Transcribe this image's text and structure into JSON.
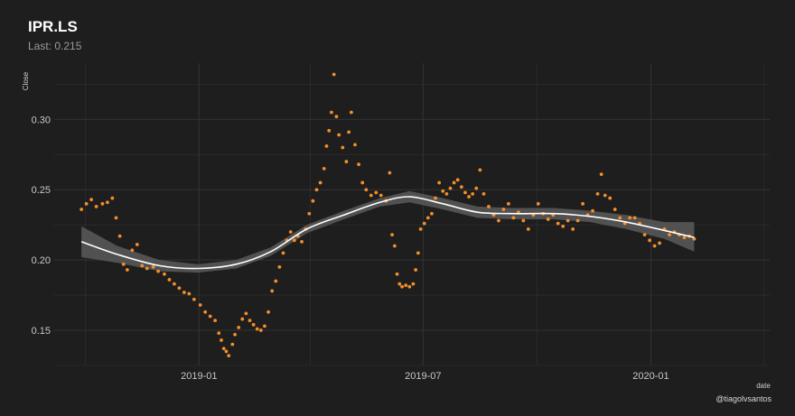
{
  "header": {
    "title": "IPR.LS",
    "subtitle": "Last: 0.215",
    "caption": "@tiagolvsantos"
  },
  "colors": {
    "background": "#1e1e1e",
    "grid": "#333333",
    "points": "#f28e2b",
    "trend_line": "#ffffff",
    "band": "#5a5a5a"
  },
  "chart_data": {
    "type": "scatter",
    "title": "IPR.LS",
    "subtitle": "Last: 0.215",
    "xlabel": "date",
    "ylabel": "Close",
    "x_ticks": [
      "2019-01",
      "2019-07",
      "2020-01"
    ],
    "y_ticks": [
      "0.15",
      "0.20",
      "0.25",
      "0.30"
    ],
    "xlim": [
      "2018-09-06",
      "2020-04-06"
    ],
    "ylim": [
      0.125,
      0.34
    ],
    "grid": true,
    "legend": "none",
    "series": [
      {
        "kind": "points",
        "values": [
          [
            "2018-09-28",
            0.236
          ],
          [
            "2018-10-02",
            0.24
          ],
          [
            "2018-10-06",
            0.243
          ],
          [
            "2018-10-10",
            0.238
          ],
          [
            "2018-10-15",
            0.24
          ],
          [
            "2018-10-19",
            0.241
          ],
          [
            "2018-10-23",
            0.244
          ],
          [
            "2018-10-26",
            0.23
          ],
          [
            "2018-10-29",
            0.217
          ],
          [
            "2018-11-01",
            0.197
          ],
          [
            "2018-11-04",
            0.193
          ],
          [
            "2018-11-08",
            0.207
          ],
          [
            "2018-11-12",
            0.211
          ],
          [
            "2018-11-16",
            0.196
          ],
          [
            "2018-11-20",
            0.194
          ],
          [
            "2018-11-25",
            0.195
          ],
          [
            "2018-11-29",
            0.192
          ],
          [
            "2018-12-04",
            0.19
          ],
          [
            "2018-12-08",
            0.186
          ],
          [
            "2018-12-12",
            0.183
          ],
          [
            "2018-12-16",
            0.18
          ],
          [
            "2018-12-20",
            0.177
          ],
          [
            "2018-12-24",
            0.176
          ],
          [
            "2018-12-28",
            0.172
          ],
          [
            "2019-01-02",
            0.168
          ],
          [
            "2019-01-06",
            0.163
          ],
          [
            "2019-01-10",
            0.16
          ],
          [
            "2019-01-14",
            0.157
          ],
          [
            "2019-01-17",
            0.148
          ],
          [
            "2019-01-19",
            0.143
          ],
          [
            "2019-01-21",
            0.137
          ],
          [
            "2019-01-23",
            0.135
          ],
          [
            "2019-01-25",
            0.132
          ],
          [
            "2019-01-28",
            0.14
          ],
          [
            "2019-01-30",
            0.147
          ],
          [
            "2019-02-02",
            0.152
          ],
          [
            "2019-02-05",
            0.158
          ],
          [
            "2019-02-08",
            0.162
          ],
          [
            "2019-02-11",
            0.157
          ],
          [
            "2019-02-14",
            0.154
          ],
          [
            "2019-02-17",
            0.151
          ],
          [
            "2019-02-20",
            0.15
          ],
          [
            "2019-02-23",
            0.153
          ],
          [
            "2019-02-26",
            0.163
          ],
          [
            "2019-03-01",
            0.178
          ],
          [
            "2019-03-04",
            0.185
          ],
          [
            "2019-03-07",
            0.195
          ],
          [
            "2019-03-10",
            0.205
          ],
          [
            "2019-03-13",
            0.214
          ],
          [
            "2019-03-16",
            0.22
          ],
          [
            "2019-03-19",
            0.214
          ],
          [
            "2019-03-22",
            0.217
          ],
          [
            "2019-03-25",
            0.213
          ],
          [
            "2019-03-28",
            0.222
          ],
          [
            "2019-03-31",
            0.233
          ],
          [
            "2019-04-03",
            0.242
          ],
          [
            "2019-04-06",
            0.25
          ],
          [
            "2019-04-09",
            0.255
          ],
          [
            "2019-04-12",
            0.265
          ],
          [
            "2019-04-14",
            0.281
          ],
          [
            "2019-04-16",
            0.292
          ],
          [
            "2019-04-18",
            0.305
          ],
          [
            "2019-04-20",
            0.332
          ],
          [
            "2019-04-22",
            0.302
          ],
          [
            "2019-04-24",
            0.289
          ],
          [
            "2019-04-27",
            0.28
          ],
          [
            "2019-04-30",
            0.27
          ],
          [
            "2019-05-02",
            0.291
          ],
          [
            "2019-05-04",
            0.305
          ],
          [
            "2019-05-07",
            0.282
          ],
          [
            "2019-05-10",
            0.268
          ],
          [
            "2019-05-13",
            0.255
          ],
          [
            "2019-05-16",
            0.25
          ],
          [
            "2019-05-20",
            0.246
          ],
          [
            "2019-05-24",
            0.248
          ],
          [
            "2019-05-28",
            0.246
          ],
          [
            "2019-06-01",
            0.242
          ],
          [
            "2019-06-04",
            0.262
          ],
          [
            "2019-06-06",
            0.218
          ],
          [
            "2019-06-08",
            0.21
          ],
          [
            "2019-06-10",
            0.19
          ],
          [
            "2019-06-12",
            0.183
          ],
          [
            "2019-06-14",
            0.181
          ],
          [
            "2019-06-17",
            0.182
          ],
          [
            "2019-06-20",
            0.181
          ],
          [
            "2019-06-23",
            0.183
          ],
          [
            "2019-06-25",
            0.193
          ],
          [
            "2019-06-27",
            0.205
          ],
          [
            "2019-06-29",
            0.222
          ],
          [
            "2019-07-02",
            0.226
          ],
          [
            "2019-07-05",
            0.23
          ],
          [
            "2019-07-08",
            0.233
          ],
          [
            "2019-07-11",
            0.244
          ],
          [
            "2019-07-14",
            0.255
          ],
          [
            "2019-07-17",
            0.249
          ],
          [
            "2019-07-20",
            0.247
          ],
          [
            "2019-07-23",
            0.251
          ],
          [
            "2019-07-26",
            0.255
          ],
          [
            "2019-07-29",
            0.257
          ],
          [
            "2019-08-01",
            0.252
          ],
          [
            "2019-08-04",
            0.248
          ],
          [
            "2019-08-07",
            0.245
          ],
          [
            "2019-08-10",
            0.247
          ],
          [
            "2019-08-13",
            0.251
          ],
          [
            "2019-08-16",
            0.264
          ],
          [
            "2019-08-19",
            0.247
          ],
          [
            "2019-08-23",
            0.238
          ],
          [
            "2019-08-27",
            0.232
          ],
          [
            "2019-08-31",
            0.228
          ],
          [
            "2019-09-04",
            0.236
          ],
          [
            "2019-09-08",
            0.24
          ],
          [
            "2019-09-12",
            0.23
          ],
          [
            "2019-09-16",
            0.234
          ],
          [
            "2019-09-20",
            0.228
          ],
          [
            "2019-09-24",
            0.222
          ],
          [
            "2019-09-28",
            0.232
          ],
          [
            "2019-10-02",
            0.24
          ],
          [
            "2019-10-06",
            0.233
          ],
          [
            "2019-10-10",
            0.229
          ],
          [
            "2019-10-14",
            0.232
          ],
          [
            "2019-10-18",
            0.226
          ],
          [
            "2019-10-22",
            0.224
          ],
          [
            "2019-10-26",
            0.228
          ],
          [
            "2019-10-30",
            0.222
          ],
          [
            "2019-11-03",
            0.228
          ],
          [
            "2019-11-07",
            0.24
          ],
          [
            "2019-11-11",
            0.232
          ],
          [
            "2019-11-15",
            0.235
          ],
          [
            "2019-11-19",
            0.247
          ],
          [
            "2019-11-22",
            0.261
          ],
          [
            "2019-11-25",
            0.246
          ],
          [
            "2019-11-29",
            0.244
          ],
          [
            "2019-12-03",
            0.236
          ],
          [
            "2019-12-07",
            0.23
          ],
          [
            "2019-12-11",
            0.226
          ],
          [
            "2019-12-15",
            0.23
          ],
          [
            "2019-12-19",
            0.23
          ],
          [
            "2019-12-23",
            0.226
          ],
          [
            "2019-12-27",
            0.218
          ],
          [
            "2019-12-31",
            0.214
          ],
          [
            "2020-01-04",
            0.21
          ],
          [
            "2020-01-08",
            0.212
          ],
          [
            "2020-01-12",
            0.222
          ],
          [
            "2020-01-16",
            0.218
          ],
          [
            "2020-01-20",
            0.22
          ],
          [
            "2020-01-24",
            0.218
          ],
          [
            "2020-01-28",
            0.216
          ],
          [
            "2020-02-01",
            0.217
          ],
          [
            "2020-02-05",
            0.215
          ]
        ]
      },
      {
        "kind": "smooth",
        "values": [
          [
            "2018-09-28",
            0.213
          ],
          [
            "2018-10-27",
            0.204
          ],
          [
            "2018-11-30",
            0.196
          ],
          [
            "2018-12-31",
            0.194
          ],
          [
            "2019-01-31",
            0.197
          ],
          [
            "2019-02-28",
            0.206
          ],
          [
            "2019-03-29",
            0.222
          ],
          [
            "2019-04-28",
            0.232
          ],
          [
            "2019-05-27",
            0.241
          ],
          [
            "2019-06-20",
            0.245
          ],
          [
            "2019-07-17",
            0.24
          ],
          [
            "2019-08-14",
            0.234
          ],
          [
            "2019-09-11",
            0.233
          ],
          [
            "2019-10-15",
            0.233
          ],
          [
            "2019-11-13",
            0.231
          ],
          [
            "2019-12-12",
            0.227
          ],
          [
            "2020-01-12",
            0.221
          ],
          [
            "2020-02-05",
            0.216
          ]
        ],
        "band_lower": [
          0.202,
          0.198,
          0.192,
          0.191,
          0.194,
          0.203,
          0.219,
          0.229,
          0.238,
          0.241,
          0.236,
          0.23,
          0.229,
          0.229,
          0.227,
          0.222,
          0.215,
          0.206
        ],
        "band_upper": [
          0.224,
          0.21,
          0.2,
          0.197,
          0.2,
          0.209,
          0.225,
          0.235,
          0.244,
          0.249,
          0.244,
          0.238,
          0.237,
          0.237,
          0.235,
          0.232,
          0.227,
          0.227
        ]
      }
    ]
  }
}
